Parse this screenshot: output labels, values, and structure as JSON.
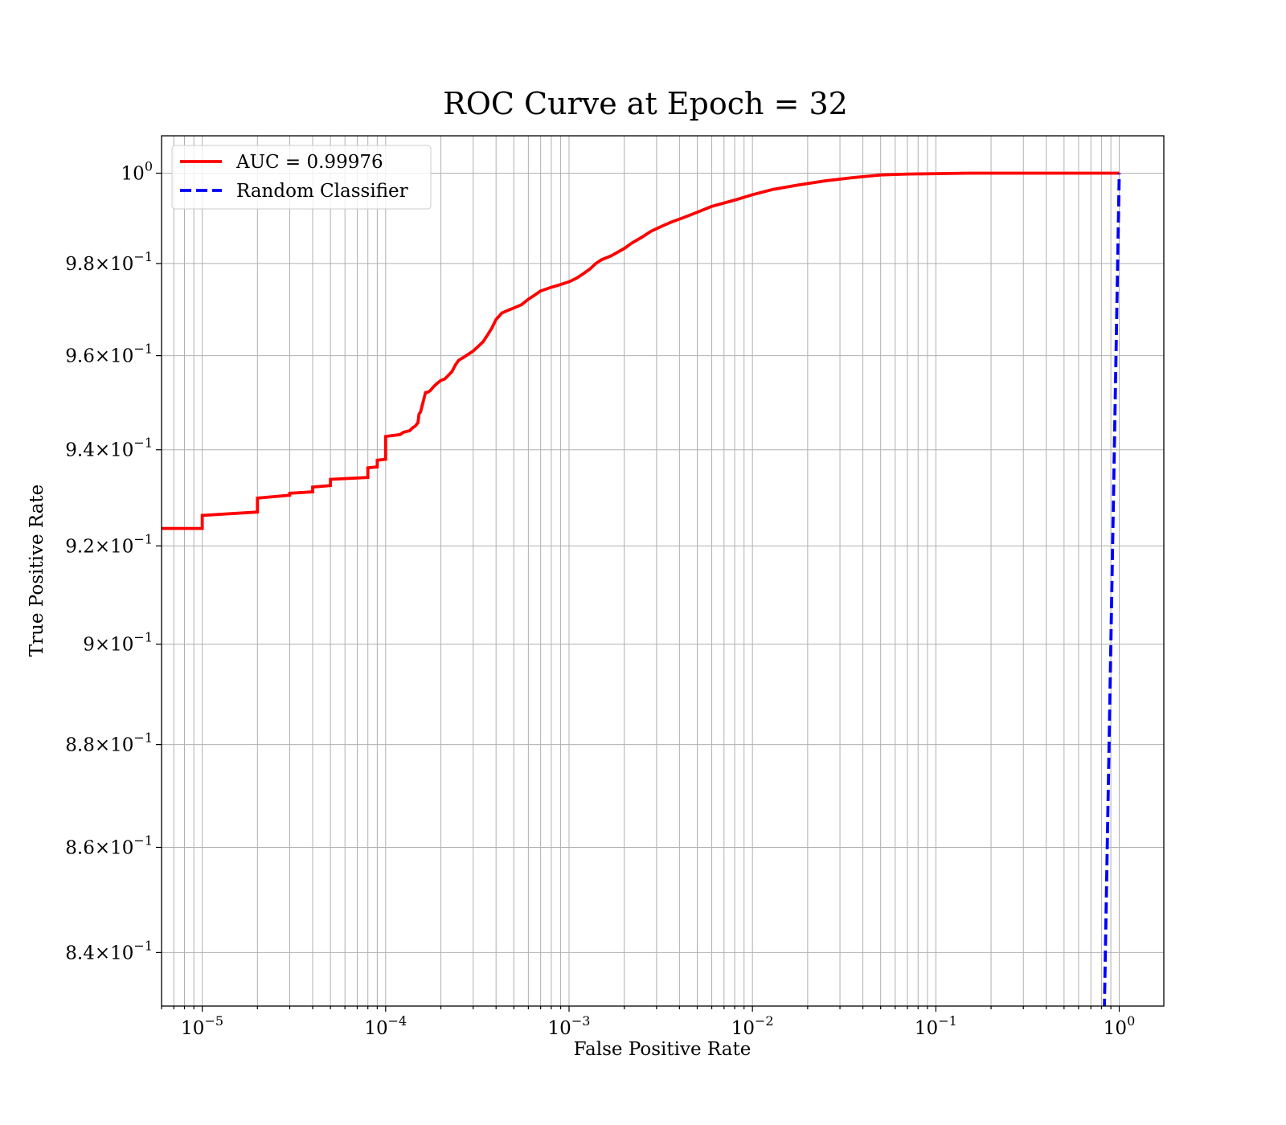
{
  "chart_data": {
    "type": "line",
    "title": "ROC Curve at Epoch = 32",
    "xlabel": "False Positive Rate",
    "ylabel": "True Positive Rate",
    "x_scale": "log",
    "y_scale": "log",
    "xlim": [
      6e-06,
      1.75
    ],
    "ylim": [
      0.83,
      1.0084
    ],
    "x_ticks": [
      {
        "value": 1e-05,
        "base": "10",
        "exp": "−5"
      },
      {
        "value": 0.0001,
        "base": "10",
        "exp": "−4"
      },
      {
        "value": 0.001,
        "base": "10",
        "exp": "−3"
      },
      {
        "value": 0.01,
        "base": "10",
        "exp": "−2"
      },
      {
        "value": 0.1,
        "base": "10",
        "exp": "−1"
      },
      {
        "value": 1,
        "base": "10",
        "exp": "0"
      }
    ],
    "y_ticks": [
      {
        "value": 1.0,
        "mant": "",
        "base": "10",
        "exp": "0"
      },
      {
        "value": 0.98,
        "mant": "9.8×",
        "base": "10",
        "exp": "−1"
      },
      {
        "value": 0.96,
        "mant": "9.6×",
        "base": "10",
        "exp": "−1"
      },
      {
        "value": 0.94,
        "mant": "9.4×",
        "base": "10",
        "exp": "−1"
      },
      {
        "value": 0.92,
        "mant": "9.2×",
        "base": "10",
        "exp": "−1"
      },
      {
        "value": 0.9,
        "mant": "9×",
        "base": "10",
        "exp": "−1"
      },
      {
        "value": 0.88,
        "mant": "8.8×",
        "base": "10",
        "exp": "−1"
      },
      {
        "value": 0.86,
        "mant": "8.6×",
        "base": "10",
        "exp": "−1"
      },
      {
        "value": 0.84,
        "mant": "8.4×",
        "base": "10",
        "exp": "−1"
      }
    ],
    "grid": true,
    "legend_position": "top-left",
    "series": [
      {
        "name": "AUC = 0.99976",
        "color": "#ff0000",
        "style": "solid",
        "x": [
          1e-07,
          1e-05,
          1e-05,
          2e-05,
          2e-05,
          3e-05,
          3e-05,
          4e-05,
          4e-05,
          5e-05,
          5e-05,
          8e-05,
          8e-05,
          9e-05,
          9e-05,
          0.0001,
          0.0001,
          0.00012,
          0.000125,
          0.000135,
          0.00014,
          0.000145,
          0.00015,
          0.000152,
          0.000155,
          0.000165,
          0.00017,
          0.000175,
          0.000182,
          0.00019,
          0.0002,
          0.00021,
          0.00022,
          0.00023,
          0.00024,
          0.00025,
          0.00027,
          0.0003,
          0.00032,
          0.00034,
          0.00036,
          0.00038,
          0.0004,
          0.00043,
          0.00046,
          0.0005,
          0.00055,
          0.0006,
          0.00065,
          0.0007,
          0.0008,
          0.0009,
          0.001,
          0.0011,
          0.0012,
          0.0013,
          0.0014,
          0.0015,
          0.0017,
          0.002,
          0.0022,
          0.0025,
          0.0028,
          0.0032,
          0.0036,
          0.0042,
          0.005,
          0.006,
          0.008,
          0.01,
          0.013,
          0.018,
          0.025,
          0.035,
          0.05,
          0.07,
          0.1,
          0.15,
          0.3,
          0.6,
          1
        ],
        "y": [
          0.9236,
          0.9236,
          0.9263,
          0.927,
          0.9299,
          0.9305,
          0.9309,
          0.9312,
          0.9322,
          0.9325,
          0.9338,
          0.9342,
          0.9362,
          0.9364,
          0.9378,
          0.938,
          0.9428,
          0.9432,
          0.9437,
          0.944,
          0.9446,
          0.945,
          0.9457,
          0.9475,
          0.948,
          0.9521,
          0.9522,
          0.9525,
          0.9533,
          0.954,
          0.9547,
          0.955,
          0.9558,
          0.9566,
          0.958,
          0.959,
          0.9598,
          0.961,
          0.962,
          0.963,
          0.9645,
          0.966,
          0.9678,
          0.9692,
          0.9697,
          0.9703,
          0.971,
          0.9722,
          0.9731,
          0.974,
          0.9748,
          0.9754,
          0.976,
          0.9768,
          0.9778,
          0.9788,
          0.98,
          0.9808,
          0.9817,
          0.9833,
          0.9845,
          0.9858,
          0.9871,
          0.9882,
          0.9891,
          0.9901,
          0.9913,
          0.9926,
          0.994,
          0.9952,
          0.9964,
          0.9974,
          0.9983,
          0.999,
          0.9996,
          0.9998,
          0.9999,
          1.0,
          1.0,
          1.0,
          1.0
        ]
      },
      {
        "name": "Random Classifier",
        "color": "#0000ff",
        "style": "dashed",
        "x": [
          0.8,
          1
        ],
        "y": [
          0.8,
          1
        ]
      }
    ]
  }
}
